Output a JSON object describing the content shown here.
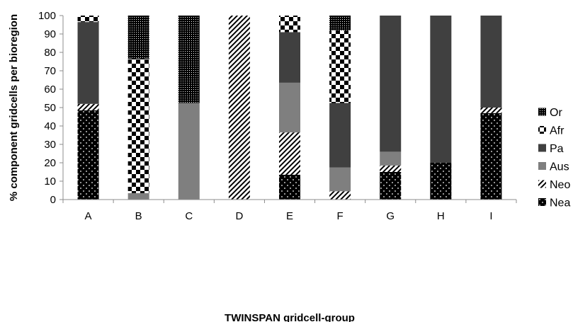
{
  "chart_data": {
    "type": "bar",
    "stacked": true,
    "title": "",
    "xlabel": "TWINSPAN gridcell-group",
    "ylabel": "% component gridcells per bioregion",
    "ylim": [
      0,
      100
    ],
    "yticks": [
      0,
      10,
      20,
      30,
      40,
      50,
      60,
      70,
      80,
      90,
      100
    ],
    "grid": false,
    "legend_position": "right",
    "categories": [
      "A",
      "B",
      "C",
      "D",
      "E",
      "F",
      "G",
      "H",
      "I"
    ],
    "series": [
      {
        "name": "Nea",
        "pattern": "dots-on-black",
        "values": [
          48.5,
          0,
          0,
          0,
          13.5,
          0,
          15,
          20,
          47
        ]
      },
      {
        "name": "Neo",
        "pattern": "diagonal-stripes",
        "values": [
          3.5,
          0,
          0,
          100,
          23,
          4.5,
          3.5,
          0,
          3
        ]
      },
      {
        "name": "Aus",
        "pattern": "solid-light-grey",
        "values": [
          0,
          3.5,
          52.5,
          0,
          27,
          13,
          7.5,
          0,
          0
        ]
      },
      {
        "name": "Pa",
        "pattern": "solid-dark-grey",
        "values": [
          44.5,
          0,
          0,
          0,
          27.5,
          35,
          74,
          80,
          50
        ]
      },
      {
        "name": "Afr",
        "pattern": "checkerboard",
        "values": [
          3.5,
          73,
          0,
          0,
          9,
          39.5,
          0,
          0,
          0
        ]
      },
      {
        "name": "Or",
        "pattern": "fine-dots",
        "values": [
          0,
          23.5,
          47.5,
          0,
          0,
          8,
          0,
          0,
          0
        ]
      }
    ],
    "legend_order": [
      "Or",
      "Afr",
      "Pa",
      "Aus",
      "Neo",
      "Nea"
    ],
    "legend_labels": {
      "Or": "Or",
      "Afr": "Afr",
      "Pa": "Pa",
      "Aus": "Aus",
      "Neo": "Neo",
      "Nea": "Nea"
    }
  }
}
